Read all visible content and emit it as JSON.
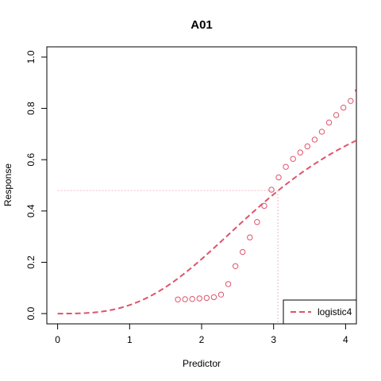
{
  "chart_data": {
    "type": "scatter",
    "title": "A01",
    "xlabel": "Predictor",
    "ylabel": "Response",
    "xlim": [
      -0.15,
      4.15
    ],
    "ylim": [
      -0.04,
      1.04
    ],
    "x_ticks": [
      0,
      1,
      2,
      3,
      4
    ],
    "x_tick_labels": [
      "0",
      "1",
      "2",
      "3",
      "4"
    ],
    "y_ticks": [
      0.0,
      0.2,
      0.4,
      0.6,
      0.8,
      1.0
    ],
    "y_tick_labels": [
      "0.0",
      "0.2",
      "0.4",
      "0.6",
      "0.8",
      "1.0"
    ],
    "grid": false,
    "colors": {
      "series": "#df536b",
      "reference": "#f4b6c2",
      "axis": "#000000"
    },
    "points": {
      "x": [
        1.67,
        1.77,
        1.87,
        1.97,
        2.07,
        2.17,
        2.27,
        2.37,
        2.47,
        2.57,
        2.67,
        2.77,
        2.87,
        2.97,
        3.07,
        3.17,
        3.27,
        3.37,
        3.47,
        3.57,
        3.67,
        3.77,
        3.87,
        3.97,
        4.07,
        4.17
      ],
      "y": [
        0.055,
        0.056,
        0.057,
        0.059,
        0.061,
        0.064,
        0.074,
        0.115,
        0.185,
        0.24,
        0.297,
        0.357,
        0.42,
        0.483,
        0.531,
        0.572,
        0.603,
        0.628,
        0.652,
        0.678,
        0.709,
        0.745,
        0.774,
        0.803,
        0.829,
        0.87
      ]
    },
    "fit": {
      "name": "logistic4",
      "model": "logistic4",
      "bottom": 0.0,
      "top": 0.93,
      "ec50": 3.0,
      "slope": 3.0,
      "x_range": [
        0.0,
        4.15
      ]
    },
    "reference_point": {
      "x": 3.06,
      "y": 0.48
    },
    "legend": {
      "position": "bottom-right",
      "entries": [
        "logistic4"
      ]
    }
  }
}
